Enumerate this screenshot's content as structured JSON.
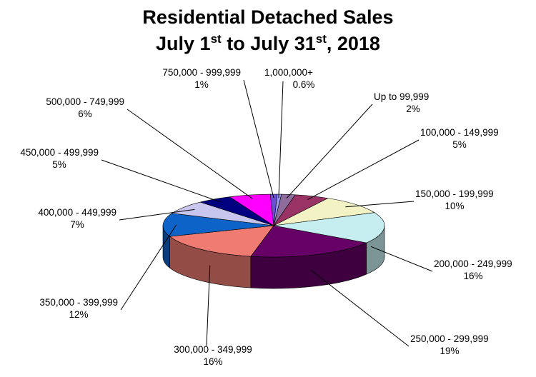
{
  "chart_data": {
    "type": "pie",
    "title": {
      "line1": "Residential Detached Sales",
      "line2_a": "July 1",
      "line2_sup1": "st",
      "line2_b": " to July 31",
      "line2_sup2": "st",
      "line2_c": ", 2018"
    },
    "slices": [
      {
        "label": "Up to 99,999",
        "pct_label": "2%",
        "value": 2,
        "color": "#8d6b9b"
      },
      {
        "label": "100,000 - 149,999",
        "pct_label": "5%",
        "value": 5,
        "color": "#993366"
      },
      {
        "label": "150,000 - 199,999",
        "pct_label": "10%",
        "value": 10,
        "color": "#f2f2c4"
      },
      {
        "label": "200,000 - 249,999",
        "pct_label": "16%",
        "value": 16,
        "color": "#c6eef0"
      },
      {
        "label": "250,000 - 299,999",
        "pct_label": "19%",
        "value": 19,
        "color": "#660066"
      },
      {
        "label": "300,000 - 349,999",
        "pct_label": "16%",
        "value": 16,
        "color": "#ef7b73"
      },
      {
        "label": "350,000 - 399,999",
        "pct_label": "12%",
        "value": 12,
        "color": "#0e63c8"
      },
      {
        "label": "400,000 - 449,999",
        "pct_label": "7%",
        "value": 7,
        "color": "#c8c6ee"
      },
      {
        "label": "450,000 - 499,999",
        "pct_label": "5%",
        "value": 5,
        "color": "#000080"
      },
      {
        "label": "500,000 - 749,999",
        "pct_label": "6%",
        "value": 6,
        "color": "#ff00ff"
      },
      {
        "label": "750,000 - 999,999",
        "pct_label": "1%",
        "value": 1,
        "color": "#6a4ed6"
      },
      {
        "label": "1,000,000+",
        "pct_label": "0.6%",
        "value": 0.6,
        "color": "#9a9af2"
      }
    ]
  }
}
